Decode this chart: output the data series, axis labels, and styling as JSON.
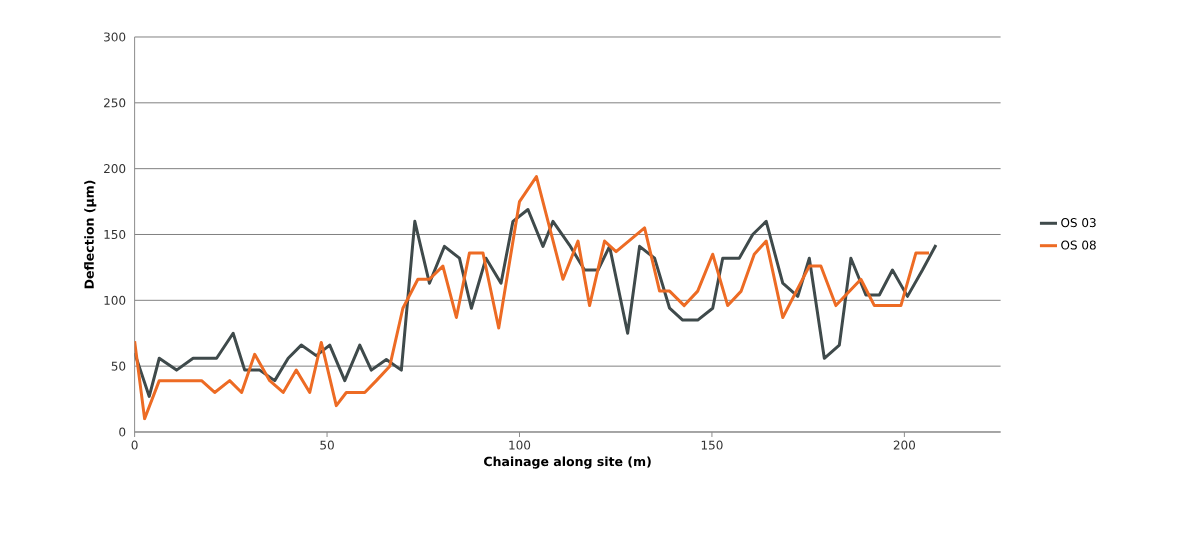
{
  "chart_data": {
    "type": "line",
    "xlabel": "Chainage along site (m)",
    "ylabel": "Deflection (µm)",
    "xlim": [
      0,
      225
    ],
    "xticks": [
      0,
      50,
      100,
      150,
      200
    ],
    "ylim": [
      0,
      300
    ],
    "yticks": [
      0,
      50,
      100,
      150,
      200,
      250,
      300
    ],
    "grid": "y",
    "legend": "right",
    "marker": "none",
    "line_style": "solid",
    "series": [
      {
        "name": "OS 03",
        "color": "#3f4a4b",
        "x": [
          0,
          3.8,
          6.4,
          10.9,
          15.2,
          21.3,
          25.6,
          28.6,
          32.5,
          36.4,
          39.9,
          43.3,
          47.2,
          50.7,
          54.6,
          58.5,
          61.5,
          65.4,
          69.3,
          72.8,
          76.6,
          80.5,
          84.4,
          87.5,
          91.3,
          95.2,
          98.3,
          102.2,
          106.1,
          108.7,
          113,
          116.9,
          120.4,
          123.4,
          128.1,
          131.2,
          135.1,
          139,
          142.4,
          146.3,
          150.2,
          152.8,
          157.1,
          160.6,
          164.1,
          168.4,
          172.3,
          175.3,
          179.2,
          183.1,
          186.1,
          190,
          193.5,
          196.9,
          200.8,
          204.7,
          208.2
        ],
        "values": [
          60,
          27,
          56,
          47,
          56,
          56,
          75,
          47,
          47,
          39,
          56,
          66,
          58,
          66,
          39,
          66,
          47,
          55,
          47,
          160,
          113,
          141,
          132,
          94,
          132,
          113,
          160,
          169,
          141,
          160,
          142,
          123,
          123,
          141,
          75,
          141,
          132,
          94,
          85,
          85,
          94,
          132,
          132,
          150,
          160,
          113,
          103,
          132,
          56,
          66,
          132,
          104,
          104,
          123,
          103,
          123,
          142
        ]
      },
      {
        "name": "OS 08",
        "color": "#ed6b24",
        "x": [
          0,
          2.6,
          6.4,
          17.4,
          20.8,
          24.7,
          27.8,
          31.2,
          35.1,
          38.6,
          42,
          45.5,
          48.5,
          52.4,
          55,
          59.8,
          62.8,
          66.3,
          69.7,
          73.6,
          76.6,
          80.1,
          83.6,
          87,
          90.5,
          94.6,
          100,
          104.4,
          111.3,
          115.2,
          118.2,
          122.1,
          125.1,
          132.5,
          136.4,
          139,
          142.8,
          146.3,
          150.2,
          154.1,
          157.6,
          161,
          164.1,
          168.4,
          175.3,
          178.3,
          182.2,
          188.7,
          192.2,
          199.1,
          203,
          206.4
        ],
        "values": [
          69,
          10,
          39,
          39,
          30,
          39,
          30,
          59,
          39,
          30,
          47,
          30,
          68,
          20,
          30,
          30,
          39,
          50,
          94,
          116,
          116,
          126,
          87,
          136,
          136,
          79,
          175,
          194,
          116,
          145,
          96,
          145,
          137,
          155,
          107,
          107,
          96,
          107,
          135,
          96,
          107,
          135,
          145,
          87,
          126,
          126,
          96,
          116,
          96,
          96,
          136,
          136
        ]
      }
    ]
  }
}
